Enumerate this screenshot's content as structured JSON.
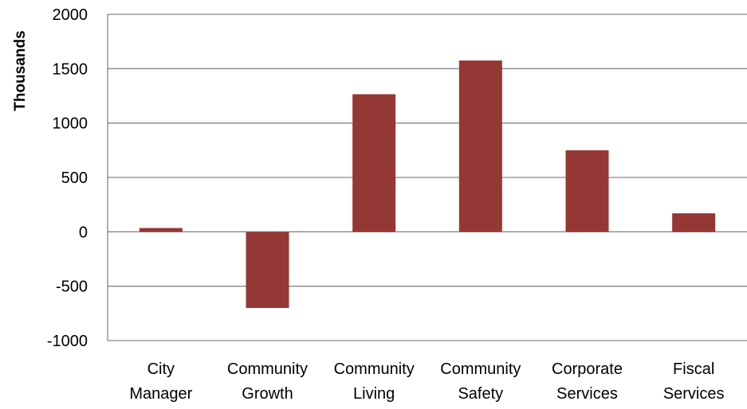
{
  "chart_data": {
    "type": "bar",
    "categories": [
      [
        "City",
        "Manager"
      ],
      [
        "Community",
        "Growth"
      ],
      [
        "Community",
        "Living"
      ],
      [
        "Community",
        "Safety"
      ],
      [
        "Corporate",
        "Services"
      ],
      [
        "Fiscal",
        "Services"
      ]
    ],
    "values": [
      35,
      -700,
      1265,
      1575,
      750,
      170
    ],
    "ylabel": "Thousands",
    "xlabel": "",
    "title": "",
    "ylim": [
      -1000,
      2000
    ],
    "yticks": [
      2000,
      1500,
      1000,
      500,
      0,
      -500,
      -1000
    ],
    "grid": true,
    "legend": "none",
    "bar_color": "#953735",
    "grid_color": "#868686"
  }
}
